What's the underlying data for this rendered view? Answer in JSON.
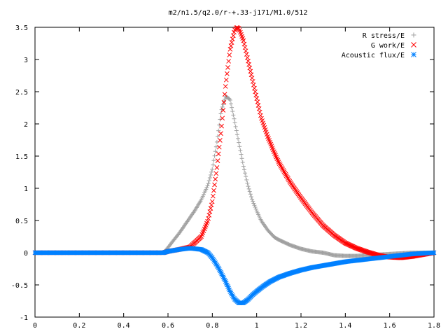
{
  "chart_data": {
    "type": "scatter",
    "title": "m2/n1.5/q2.0/r-+.33-j171/M1.0/512",
    "xlabel": "",
    "ylabel": "",
    "xlim": [
      0,
      1.8
    ],
    "ylim": [
      -1,
      3.5
    ],
    "x_ticks": [
      0,
      0.2,
      0.4,
      0.6,
      0.8,
      1,
      1.2,
      1.4,
      1.6,
      1.8
    ],
    "x_tick_labels": [
      "0",
      "0.2",
      "0.4",
      "0.6",
      "0.8",
      "1",
      "1.2",
      "1.4",
      "1.6",
      "1.8"
    ],
    "y_ticks": [
      -1,
      -0.5,
      0,
      0.5,
      1,
      1.5,
      2,
      2.5,
      3,
      3.5
    ],
    "y_tick_labels": [
      "-1",
      "-0.5",
      "0",
      "0.5",
      "1",
      "1.5",
      "2",
      "2.5",
      "3",
      "3.5"
    ],
    "grid": false,
    "legend_position": "top-right",
    "series": [
      {
        "name": "R stress/E",
        "marker": "plus",
        "color": "#a0a0a0",
        "x": [
          0.0,
          0.1,
          0.2,
          0.3,
          0.4,
          0.5,
          0.58,
          0.6,
          0.62,
          0.65,
          0.68,
          0.7,
          0.72,
          0.75,
          0.78,
          0.8,
          0.82,
          0.84,
          0.86,
          0.88,
          0.9,
          0.92,
          0.94,
          0.96,
          0.98,
          1.0,
          1.02,
          1.05,
          1.08,
          1.1,
          1.15,
          1.2,
          1.25,
          1.3,
          1.35,
          1.4,
          1.45,
          1.5,
          1.55,
          1.6,
          1.65,
          1.7,
          1.75,
          1.8
        ],
        "y": [
          0.0,
          0.0,
          0.0,
          0.0,
          0.0,
          0.0,
          0.0,
          0.08,
          0.17,
          0.3,
          0.45,
          0.55,
          0.65,
          0.82,
          1.05,
          1.3,
          1.7,
          2.2,
          2.43,
          2.38,
          2.05,
          1.7,
          1.35,
          1.05,
          0.82,
          0.65,
          0.5,
          0.35,
          0.24,
          0.2,
          0.12,
          0.06,
          0.02,
          0.0,
          -0.04,
          -0.05,
          -0.05,
          -0.04,
          -0.03,
          -0.02,
          -0.01,
          0.0,
          0.0,
          0.0
        ]
      },
      {
        "name": "G work/E",
        "marker": "cross",
        "color": "#ff0000",
        "x": [
          0.0,
          0.1,
          0.2,
          0.3,
          0.4,
          0.5,
          0.58,
          0.6,
          0.65,
          0.7,
          0.75,
          0.78,
          0.8,
          0.82,
          0.84,
          0.86,
          0.88,
          0.9,
          0.91,
          0.92,
          0.94,
          0.96,
          0.98,
          1.0,
          1.02,
          1.05,
          1.08,
          1.1,
          1.15,
          1.2,
          1.25,
          1.3,
          1.35,
          1.4,
          1.45,
          1.5,
          1.55,
          1.6,
          1.65,
          1.7,
          1.75,
          1.8
        ],
        "y": [
          0.0,
          0.0,
          0.0,
          0.0,
          0.0,
          0.0,
          0.0,
          0.02,
          0.05,
          0.09,
          0.25,
          0.5,
          0.8,
          1.3,
          1.9,
          2.6,
          3.15,
          3.45,
          3.5,
          3.48,
          3.3,
          3.0,
          2.7,
          2.4,
          2.1,
          1.8,
          1.55,
          1.4,
          1.1,
          0.85,
          0.62,
          0.42,
          0.27,
          0.15,
          0.07,
          0.01,
          -0.04,
          -0.07,
          -0.08,
          -0.06,
          -0.03,
          0.0
        ]
      },
      {
        "name": "Acoustic flux/E",
        "marker": "star",
        "color": "#0080ff",
        "x": [
          0.0,
          0.1,
          0.2,
          0.3,
          0.4,
          0.5,
          0.58,
          0.6,
          0.65,
          0.7,
          0.75,
          0.78,
          0.8,
          0.83,
          0.86,
          0.88,
          0.9,
          0.92,
          0.94,
          0.96,
          0.98,
          1.0,
          1.03,
          1.06,
          1.1,
          1.15,
          1.2,
          1.25,
          1.3,
          1.35,
          1.4,
          1.45,
          1.5,
          1.55,
          1.6,
          1.65,
          1.7,
          1.75,
          1.8
        ],
        "y": [
          0.0,
          0.0,
          0.0,
          0.0,
          0.0,
          0.0,
          0.0,
          0.02,
          0.05,
          0.07,
          0.05,
          0.0,
          -0.08,
          -0.25,
          -0.45,
          -0.6,
          -0.72,
          -0.78,
          -0.78,
          -0.73,
          -0.66,
          -0.6,
          -0.52,
          -0.45,
          -0.38,
          -0.32,
          -0.27,
          -0.23,
          -0.2,
          -0.17,
          -0.14,
          -0.12,
          -0.1,
          -0.08,
          -0.06,
          -0.04,
          -0.02,
          -0.01,
          0.0
        ]
      }
    ]
  }
}
